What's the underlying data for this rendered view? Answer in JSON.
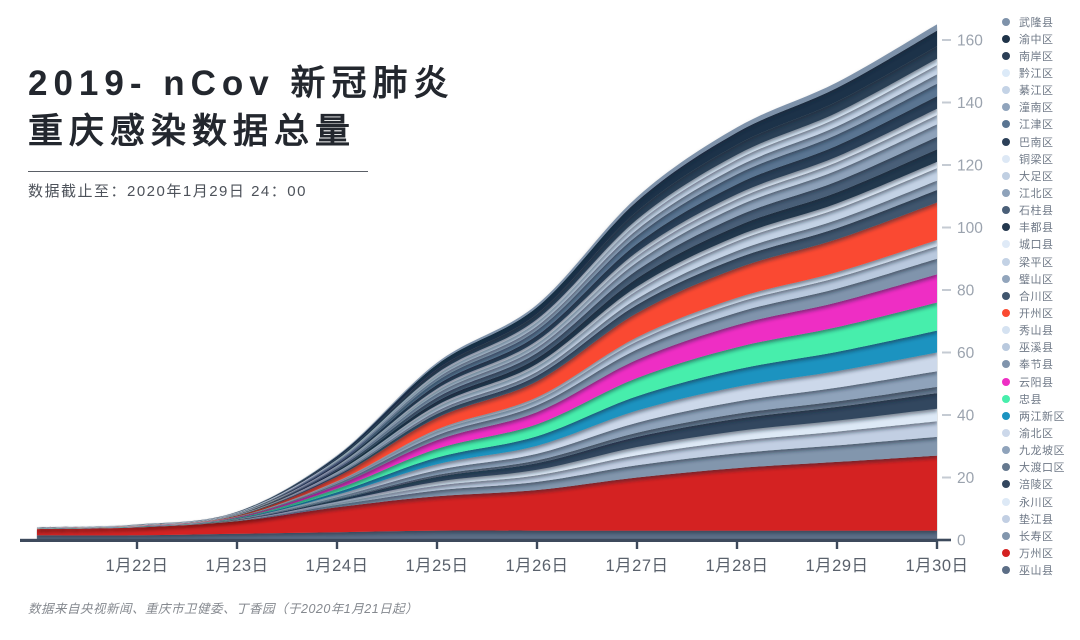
{
  "header": {
    "title_line1": "2019- nCov 新冠肺炎",
    "title_line2": "重庆感染数据总量",
    "subtitle": "数据截止至：2020年1月29日 24：00"
  },
  "footer": {
    "source": "数据来自央视新闻、重庆市卫健委、丁香园（于2020年1月21日起）"
  },
  "chart_data": {
    "type": "area",
    "variant": "stacked-smooth",
    "title": "2019-nCov 新冠肺炎 重庆感染数据总量",
    "x_labels": [
      "",
      "1月22日",
      "1月23日",
      "1月24日",
      "1月25日",
      "1月26日",
      "1月27日",
      "1月28日",
      "1月29日",
      "1月30日"
    ],
    "y_ticks": [
      0,
      20,
      40,
      60,
      80,
      100,
      120,
      140,
      160
    ],
    "ylim": [
      0,
      160
    ],
    "grid": false,
    "legend_position": "right",
    "totals": [
      4,
      5,
      9,
      27,
      57,
      75,
      110,
      132,
      147,
      165
    ],
    "growth_curve": [
      0.004,
      0.007,
      0.022,
      0.12,
      0.31,
      0.43,
      0.65,
      0.79,
      0.88,
      1.0
    ],
    "stack_order_note": "series listed bottom-to-top of stack; legend shows reverse order (top item = top band)",
    "series": [
      {
        "name": "巫山县",
        "color": "#5c6e86",
        "values": [
          1.5,
          1.5,
          2,
          2.5,
          3,
          3,
          3,
          3,
          3,
          3
        ]
      },
      {
        "name": "万州区",
        "color": "#d42121",
        "values": [
          2,
          2.5,
          4,
          8,
          11,
          13,
          17,
          20,
          22,
          24
        ]
      },
      {
        "name": "长寿区",
        "color": "#8296ad",
        "final": 6
      },
      {
        "name": "垫江县",
        "color": "#c2cfe3",
        "final": 5
      },
      {
        "name": "永川区",
        "color": "#dde9f6",
        "final": 4
      },
      {
        "name": "涪陵区",
        "color": "#33465e",
        "final": 5
      },
      {
        "name": "大渡口区",
        "color": "#66798f",
        "final": 2
      },
      {
        "name": "九龙坡区",
        "color": "#8fa3bb",
        "final": 5
      },
      {
        "name": "渝北区",
        "color": "#ccd8ea",
        "final": 6
      },
      {
        "name": "两江新区",
        "color": "#1b93c0",
        "final": 7
      },
      {
        "name": "忠县",
        "color": "#47eeac",
        "final": 9
      },
      {
        "name": "云阳县",
        "color": "#ee2fc4",
        "final": 9
      },
      {
        "name": "奉节县",
        "color": "#8094ac",
        "final": 5
      },
      {
        "name": "巫溪县",
        "color": "#b9c9de",
        "final": 4
      },
      {
        "name": "秀山县",
        "color": "#d5e2f1",
        "final": 2
      },
      {
        "name": "开州区",
        "color": "#fa4a31",
        "final": 12
      },
      {
        "name": "合川区",
        "color": "#41566e",
        "final": 4
      },
      {
        "name": "璧山区",
        "color": "#92a5bc",
        "final": 3
      },
      {
        "name": "梁平区",
        "color": "#c3d2e5",
        "final": 4
      },
      {
        "name": "城口县",
        "color": "#dfeaf7",
        "final": 2
      },
      {
        "name": "丰都县",
        "color": "#24384e",
        "final": 4
      },
      {
        "name": "石柱县",
        "color": "#4a5f78",
        "final": 4
      },
      {
        "name": "江北区",
        "color": "#8ea2ba",
        "final": 4
      },
      {
        "name": "大足区",
        "color": "#c0cfe2",
        "final": 3
      },
      {
        "name": "铜梁区",
        "color": "#dde8f5",
        "final": 2
      },
      {
        "name": "巴南区",
        "color": "#2c4058",
        "final": 4
      },
      {
        "name": "江津区",
        "color": "#5a7592",
        "final": 4
      },
      {
        "name": "潼南区",
        "color": "#90a4bc",
        "final": 3
      },
      {
        "name": "綦江区",
        "color": "#c4d3e6",
        "final": 3
      },
      {
        "name": "黔江区",
        "color": "#dceaf8",
        "final": 2
      },
      {
        "name": "南岸区",
        "color": "#2b3f56",
        "final": 4
      },
      {
        "name": "渝中区",
        "color": "#1f3349",
        "final": 5
      },
      {
        "name": "武隆县",
        "color": "#7e92aa",
        "final": 2
      }
    ],
    "colors": {
      "axis": "#3d4a5c",
      "x_label": "#5a616c",
      "y_label": "#9ba3ae",
      "y_dash": "#c5cbd3",
      "shadow": "#16202e"
    }
  }
}
